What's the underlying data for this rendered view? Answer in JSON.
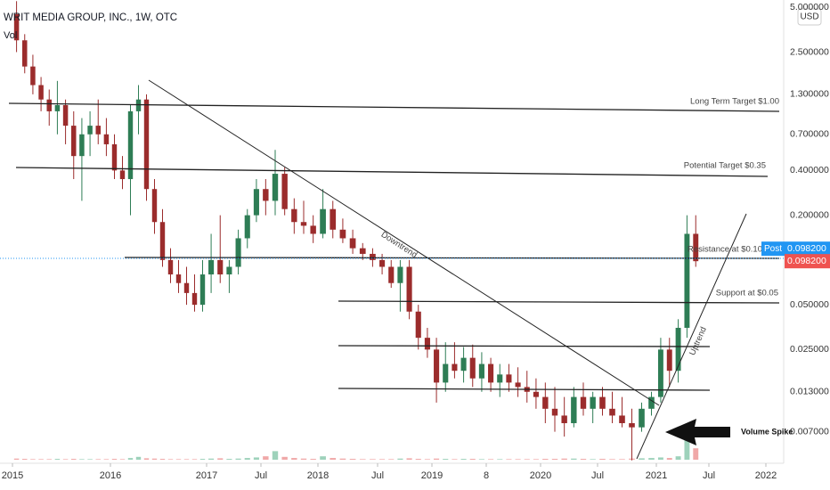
{
  "chart_data": {
    "type": "candlestick",
    "title": "WRIT MEDIA GROUP, INC., 1W, OTC",
    "volume_label": "Vol",
    "currency": "USD",
    "log_scale": true,
    "up_color": "#2e7d55",
    "down_color": "#9b2c2c",
    "up_volume_color": "#9ed2bb",
    "down_volume_color": "#f0a8a8",
    "ylim": [
      0.0043,
      5.6
    ],
    "yticks": [
      {
        "value": 5,
        "label": "5.000000"
      },
      {
        "value": 2.5,
        "label": "2.500000"
      },
      {
        "value": 1.3,
        "label": "1.300000"
      },
      {
        "value": 0.7,
        "label": "0.700000"
      },
      {
        "value": 0.4,
        "label": "0.400000"
      },
      {
        "value": 0.2,
        "label": "0.200000"
      },
      {
        "value": 0.05,
        "label": "0.050000"
      },
      {
        "value": 0.025,
        "label": "0.025000"
      },
      {
        "value": 0.013,
        "label": "0.013000"
      },
      {
        "value": 0.007,
        "label": "0.007000"
      }
    ],
    "xticks": [
      {
        "value": "2015-01",
        "label": "2015"
      },
      {
        "value": "2016-01",
        "label": "2016"
      },
      {
        "value": "2017-01",
        "label": "2017"
      },
      {
        "value": "2017-07",
        "label": "Jul"
      },
      {
        "value": "2018-01",
        "label": "2018"
      },
      {
        "value": "2018-07",
        "label": "Jul"
      },
      {
        "value": "2019-01",
        "label": "2019"
      },
      {
        "value": "2019-07",
        "label": "8"
      },
      {
        "value": "2020-01",
        "label": "2020"
      },
      {
        "value": "2020-07",
        "label": "Jul"
      },
      {
        "value": "2021-01",
        "label": "2021"
      },
      {
        "value": "2021-07",
        "label": "Jul"
      },
      {
        "value": "2022-01",
        "label": "2022"
      }
    ],
    "post_label": "Post",
    "post_price": {
      "value": 0.0982,
      "label": "0.098200"
    },
    "last_price": {
      "value": 0.0982,
      "label": "0.098200"
    },
    "annotations": {
      "long_term": "Long Term Target $1.00",
      "potential": "Potential Target $0.35",
      "resistance": "Resistance at $0.10",
      "support": "Support at $0.05",
      "downtrend": "Downtrend",
      "uptrend": "Uptrend",
      "volume_spike": "Volume Spike"
    },
    "x": [
      "2015-01",
      "2015-02",
      "2015-03",
      "2015-04",
      "2015-05",
      "2015-06",
      "2015-07",
      "2015-08",
      "2015-09",
      "2015-10",
      "2015-11",
      "2015-12",
      "2016-01",
      "2016-02",
      "2016-03",
      "2016-04",
      "2016-05",
      "2016-06",
      "2016-07",
      "2016-08",
      "2016-09",
      "2016-10",
      "2016-11",
      "2016-12",
      "2017-01",
      "2017-02",
      "2017-03",
      "2017-04",
      "2017-05",
      "2017-06",
      "2017-07",
      "2017-08",
      "2017-09",
      "2017-10",
      "2017-11",
      "2017-12",
      "2018-01",
      "2018-02",
      "2018-03",
      "2018-04",
      "2018-05",
      "2018-06",
      "2018-07",
      "2018-08",
      "2018-09",
      "2018-10",
      "2018-11",
      "2018-12",
      "2019-01",
      "2019-02",
      "2019-03",
      "2019-04",
      "2019-05",
      "2019-06",
      "2019-07",
      "2019-08",
      "2019-09",
      "2019-10",
      "2019-11",
      "2019-12",
      "2020-01",
      "2020-02",
      "2020-03",
      "2020-04",
      "2020-05",
      "2020-06",
      "2020-07",
      "2020-08",
      "2020-09",
      "2020-10",
      "2020-11",
      "2020-12",
      "2021-01",
      "2021-02",
      "2021-03",
      "2021-04",
      "2021-05"
    ],
    "open": [
      4.5,
      3.0,
      2.0,
      1.5,
      1.2,
      1.0,
      1.1,
      0.8,
      0.5,
      0.7,
      0.8,
      0.7,
      0.6,
      0.4,
      0.35,
      1.0,
      1.2,
      0.3,
      0.18,
      0.1,
      0.08,
      0.07,
      0.06,
      0.05,
      0.08,
      0.1,
      0.08,
      0.09,
      0.14,
      0.2,
      0.3,
      0.25,
      0.38,
      0.22,
      0.18,
      0.17,
      0.15,
      0.22,
      0.16,
      0.14,
      0.12,
      0.11,
      0.1,
      0.09,
      0.07,
      0.09,
      0.045,
      0.03,
      0.025,
      0.015,
      0.02,
      0.018,
      0.022,
      0.016,
      0.02,
      0.015,
      0.017,
      0.015,
      0.014,
      0.013,
      0.012,
      0.01,
      0.009,
      0.008,
      0.012,
      0.01,
      0.012,
      0.01,
      0.009,
      0.008,
      0.0075,
      0.01,
      0.012,
      0.025,
      0.018,
      0.035,
      0.15
    ],
    "high": [
      5.5,
      3.3,
      2.4,
      1.7,
      1.4,
      1.6,
      1.2,
      1.0,
      0.9,
      1.0,
      1.2,
      0.9,
      0.7,
      0.5,
      1.1,
      1.5,
      1.3,
      0.35,
      0.22,
      0.12,
      0.1,
      0.09,
      0.08,
      0.1,
      0.15,
      0.2,
      0.1,
      0.16,
      0.22,
      0.35,
      0.35,
      0.55,
      0.42,
      0.26,
      0.25,
      0.2,
      0.3,
      0.25,
      0.19,
      0.16,
      0.13,
      0.12,
      0.11,
      0.1,
      0.1,
      0.1,
      0.05,
      0.035,
      0.03,
      0.028,
      0.028,
      0.026,
      0.027,
      0.024,
      0.022,
      0.02,
      0.02,
      0.019,
      0.018,
      0.016,
      0.015,
      0.014,
      0.012,
      0.014,
      0.015,
      0.013,
      0.014,
      0.013,
      0.012,
      0.01,
      0.011,
      0.013,
      0.03,
      0.03,
      0.04,
      0.2,
      0.2
    ],
    "low": [
      2.5,
      1.8,
      1.3,
      1.0,
      0.8,
      0.7,
      0.6,
      0.35,
      0.25,
      0.5,
      0.6,
      0.5,
      0.35,
      0.3,
      0.2,
      0.7,
      0.25,
      0.15,
      0.09,
      0.07,
      0.06,
      0.05,
      0.045,
      0.045,
      0.06,
      0.07,
      0.06,
      0.08,
      0.12,
      0.18,
      0.2,
      0.2,
      0.2,
      0.15,
      0.15,
      0.13,
      0.14,
      0.14,
      0.13,
      0.11,
      0.1,
      0.09,
      0.08,
      0.065,
      0.045,
      0.04,
      0.025,
      0.022,
      0.011,
      0.013,
      0.016,
      0.015,
      0.014,
      0.013,
      0.013,
      0.012,
      0.013,
      0.012,
      0.011,
      0.01,
      0.008,
      0.007,
      0.0065,
      0.0075,
      0.009,
      0.008,
      0.009,
      0.008,
      0.0075,
      0.0045,
      0.007,
      0.009,
      0.011,
      0.014,
      0.015,
      0.03,
      0.09
    ],
    "close": [
      3.0,
      2.0,
      1.5,
      1.2,
      1.0,
      1.1,
      0.8,
      0.5,
      0.7,
      0.8,
      0.7,
      0.6,
      0.4,
      0.35,
      1.0,
      1.2,
      0.3,
      0.18,
      0.1,
      0.08,
      0.07,
      0.06,
      0.05,
      0.08,
      0.1,
      0.08,
      0.09,
      0.14,
      0.2,
      0.3,
      0.25,
      0.38,
      0.22,
      0.18,
      0.17,
      0.15,
      0.22,
      0.16,
      0.14,
      0.12,
      0.11,
      0.1,
      0.09,
      0.07,
      0.09,
      0.045,
      0.03,
      0.025,
      0.015,
      0.02,
      0.018,
      0.022,
      0.016,
      0.02,
      0.015,
      0.017,
      0.015,
      0.014,
      0.013,
      0.012,
      0.01,
      0.009,
      0.008,
      0.012,
      0.01,
      0.012,
      0.01,
      0.009,
      0.008,
      0.0075,
      0.01,
      0.012,
      0.025,
      0.018,
      0.035,
      0.15,
      0.0982
    ],
    "volume": [
      4,
      3,
      2,
      2,
      2,
      3,
      2,
      3,
      2,
      2,
      2,
      2,
      3,
      2,
      6,
      10,
      5,
      4,
      3,
      2,
      2,
      2,
      2,
      3,
      4,
      5,
      3,
      4,
      6,
      8,
      12,
      30,
      10,
      6,
      4,
      3,
      12,
      6,
      4,
      3,
      2,
      2,
      2,
      2,
      4,
      5,
      3,
      2,
      4,
      3,
      2,
      3,
      3,
      2,
      2,
      2,
      2,
      2,
      2,
      2,
      3,
      3,
      4,
      4,
      3,
      2,
      3,
      2,
      2,
      4,
      5,
      6,
      8,
      6,
      12,
      100,
      40
    ]
  }
}
